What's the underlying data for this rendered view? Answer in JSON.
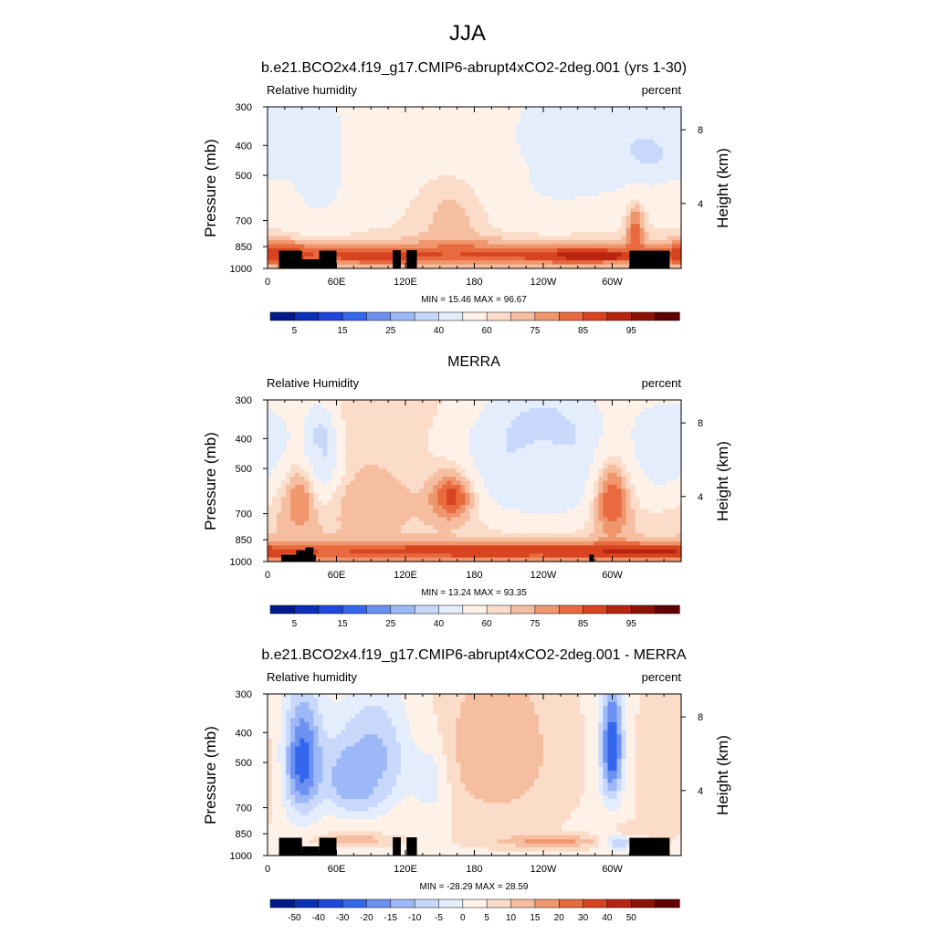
{
  "figure_title": "JJA",
  "chart_data": [
    {
      "type": "heatmap",
      "title": "b.e21.BCO2x4.f19_g17.CMIP6-abrupt4xCO2-2deg.001 (yrs 1-30)",
      "left_label": "Relative humidity",
      "right_label": "percent",
      "ylabel": "Pressure (mb)",
      "y2label": "Height (km)",
      "x_ticks": [
        "0",
        "60E",
        "120E",
        "180",
        "120W",
        "60W"
      ],
      "y_ticks": [
        "300",
        "400",
        "500",
        "700",
        "850",
        "1000"
      ],
      "y2_ticks": [
        "8",
        "4"
      ],
      "stats": "MIN =  15.46  MAX =  96.67",
      "colorbar_labels": [
        "5",
        "15",
        "25",
        "40",
        "60",
        "75",
        "85",
        "95"
      ],
      "colorbar_colors": [
        "#001a8c",
        "#0a2fb8",
        "#1e48dd",
        "#3567ee",
        "#6c91f2",
        "#9db8f6",
        "#c8d8fa",
        "#e4edfc",
        "#fdf1e8",
        "#fbdcc8",
        "#f6bea0",
        "#f0966d",
        "#e86a3e",
        "#d84420",
        "#b82410",
        "#8c1204",
        "#600000"
      ],
      "land_mask": [
        [
          10,
          30,
          78
        ],
        [
          30,
          45,
          40
        ],
        [
          45,
          60,
          78
        ],
        [
          109,
          116,
          80
        ],
        [
          121,
          130,
          80
        ],
        [
          315,
          350,
          78
        ]
      ],
      "blobs": [
        {
          "x": 44,
          "p": 390,
          "rx": 10,
          "rp": 90,
          "v": 15
        },
        {
          "x": 44,
          "p": 420,
          "rx": 18,
          "rp": 160,
          "v": 30
        },
        {
          "x": 45,
          "p": 500,
          "rx": 28,
          "rp": 260,
          "v": 48
        },
        {
          "x": 12,
          "p": 390,
          "rx": 14,
          "rp": 110,
          "v": 45
        },
        {
          "x": 262,
          "p": 400,
          "rx": 30,
          "rp": 110,
          "v": 30
        },
        {
          "x": 255,
          "p": 430,
          "rx": 55,
          "rp": 200,
          "v": 42
        },
        {
          "x": 210,
          "p": 480,
          "rx": 95,
          "rp": 260,
          "v": 50
        },
        {
          "x": 330,
          "p": 420,
          "rx": 40,
          "rp": 120,
          "v": 38
        },
        {
          "x": 350,
          "p": 380,
          "rx": 20,
          "rp": 80,
          "v": 40
        },
        {
          "x": 160,
          "p": 700,
          "rx": 35,
          "rp": 250,
          "v": 67
        },
        {
          "x": 195,
          "p": 900,
          "rx": 170,
          "rp": 90,
          "v": 80
        },
        {
          "x": 90,
          "p": 910,
          "rx": 50,
          "rp": 50,
          "v": 84
        },
        {
          "x": 285,
          "p": 910,
          "rx": 50,
          "rp": 40,
          "v": 90
        },
        {
          "x": 320,
          "p": 780,
          "rx": 8,
          "rp": 160,
          "v": 80
        },
        {
          "x": 372,
          "p": 900,
          "rx": 35,
          "rp": 80,
          "v": 85
        }
      ],
      "base_value": 60
    },
    {
      "type": "heatmap",
      "title": "MERRA",
      "left_label": "Relative Humidity",
      "right_label": "percent",
      "ylabel": "Pressure (mb)",
      "y2label": "Height (km)",
      "x_ticks": [
        "0",
        "60E",
        "120E",
        "180",
        "120W",
        "60W"
      ],
      "y_ticks": [
        "300",
        "400",
        "500",
        "700",
        "850",
        "1000"
      ],
      "y2_ticks": [
        "8",
        "4"
      ],
      "stats": "MIN =  13.24  MAX =  93.35",
      "colorbar_labels": [
        "5",
        "15",
        "25",
        "40",
        "60",
        "75",
        "85",
        "95"
      ],
      "colorbar_colors": [
        "#001a8c",
        "#0a2fb8",
        "#1e48dd",
        "#3567ee",
        "#6c91f2",
        "#9db8f6",
        "#c8d8fa",
        "#e4edfc",
        "#fdf1e8",
        "#fbdcc8",
        "#f6bea0",
        "#f0966d",
        "#e86a3e",
        "#d84420",
        "#b82410",
        "#8c1204",
        "#600000"
      ],
      "land_mask": [
        [
          12,
          28,
          950
        ],
        [
          25,
          35,
          920
        ],
        [
          33,
          40,
          900
        ],
        [
          40,
          42,
          950
        ],
        [
          280,
          284,
          950
        ]
      ],
      "blobs": [
        {
          "x": 45,
          "p": 420,
          "rx": 10,
          "rp": 80,
          "v": 20
        },
        {
          "x": 45,
          "p": 470,
          "rx": 18,
          "rp": 170,
          "v": 38
        },
        {
          "x": 240,
          "p": 420,
          "rx": 30,
          "rp": 90,
          "v": 15
        },
        {
          "x": 240,
          "p": 450,
          "rx": 55,
          "rp": 170,
          "v": 25
        },
        {
          "x": 240,
          "p": 500,
          "rx": 80,
          "rp": 260,
          "v": 42
        },
        {
          "x": 352,
          "p": 400,
          "rx": 25,
          "rp": 80,
          "v": 32
        },
        {
          "x": 345,
          "p": 450,
          "rx": 45,
          "rp": 170,
          "v": 45
        },
        {
          "x": 28,
          "p": 640,
          "rx": 15,
          "rp": 160,
          "v": 75
        },
        {
          "x": 92,
          "p": 640,
          "rx": 30,
          "rp": 110,
          "v": 70
        },
        {
          "x": 160,
          "p": 620,
          "rx": 20,
          "rp": 120,
          "v": 82
        },
        {
          "x": 300,
          "p": 640,
          "rx": 18,
          "rp": 200,
          "v": 80
        },
        {
          "x": 185,
          "p": 925,
          "rx": 190,
          "rp": 60,
          "v": 85
        },
        {
          "x": 330,
          "p": 930,
          "rx": 70,
          "rp": 50,
          "v": 87
        }
      ],
      "base_value": 65
    },
    {
      "type": "heatmap",
      "title": "b.e21.BCO2x4.f19_g17.CMIP6-abrupt4xCO2-2deg.001 - MERRA",
      "left_label": "Relative humidity",
      "right_label": "percent",
      "ylabel": "Pressure (mb)",
      "y2label": "Height (km)",
      "x_ticks": [
        "0",
        "60E",
        "120E",
        "180",
        "120W",
        "60W"
      ],
      "y_ticks": [
        "300",
        "400",
        "500",
        "700",
        "850",
        "1000"
      ],
      "y2_ticks": [
        "8",
        "4"
      ],
      "stats": "MIN = -28.29  MAX =  28.59",
      "colorbar_labels": [
        "-50",
        "-40",
        "-30",
        "-20",
        "-15",
        "-10",
        "-5",
        "0",
        "5",
        "10",
        "15",
        "20",
        "30",
        "40",
        "50"
      ],
      "colorbar_colors": [
        "#001a8c",
        "#0a2fb8",
        "#1e48dd",
        "#3567ee",
        "#6c91f2",
        "#9db8f6",
        "#c8d8fa",
        "#e4edfc",
        "#fdf1e8",
        "#fbdcc8",
        "#f6bea0",
        "#f0966d",
        "#e86a3e",
        "#d84420",
        "#b82410",
        "#8c1204",
        "#600000"
      ],
      "land_mask": [
        [
          10,
          30,
          78
        ],
        [
          30,
          45,
          40
        ],
        [
          45,
          60,
          78
        ],
        [
          109,
          116,
          80
        ],
        [
          121,
          130,
          80
        ],
        [
          315,
          350,
          78
        ]
      ],
      "blobs": [
        {
          "x": 30,
          "p": 500,
          "rx": 18,
          "rp": 220,
          "v": -25
        },
        {
          "x": 75,
          "p": 560,
          "rx": 25,
          "rp": 150,
          "v": -18
        },
        {
          "x": 95,
          "p": 480,
          "rx": 30,
          "rp": 200,
          "v": -12
        },
        {
          "x": 145,
          "p": 560,
          "rx": 18,
          "rp": 150,
          "v": -10
        },
        {
          "x": 300,
          "p": 450,
          "rx": 10,
          "rp": 200,
          "v": -28
        },
        {
          "x": 305,
          "p": 900,
          "rx": 15,
          "rp": 50,
          "v": -15
        },
        {
          "x": 200,
          "p": 430,
          "rx": 30,
          "rp": 170,
          "v": 22
        },
        {
          "x": 200,
          "p": 500,
          "rx": 55,
          "rp": 280,
          "v": 12
        },
        {
          "x": 245,
          "p": 900,
          "rx": 45,
          "rp": 40,
          "v": 18
        },
        {
          "x": 75,
          "p": 890,
          "rx": 30,
          "rp": 40,
          "v": 14
        },
        {
          "x": 315,
          "p": 830,
          "rx": 12,
          "rp": 40,
          "v": 10
        },
        {
          "x": 345,
          "p": 550,
          "rx": 25,
          "rp": 300,
          "v": 8
        }
      ],
      "base_value": 4
    }
  ]
}
